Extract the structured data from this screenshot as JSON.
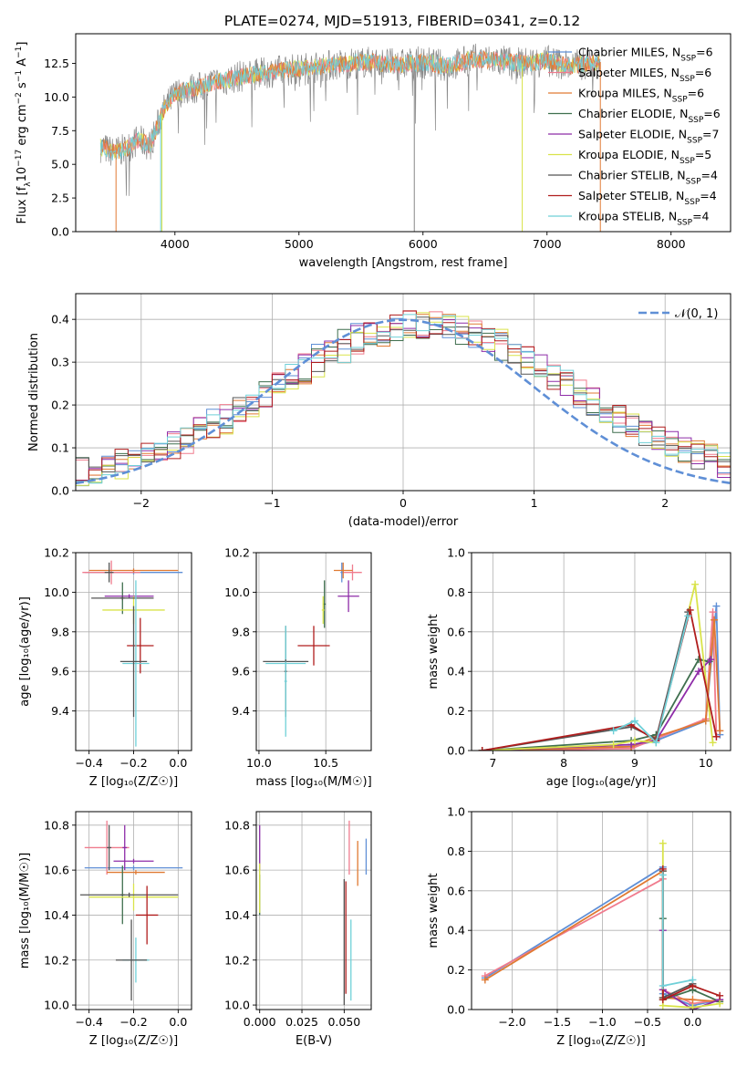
{
  "figure_title": "PLATE=0274, MJD=51913, FIBERID=0341, z=0.12",
  "colors": {
    "Chabrier MILES": "#5f8fd6",
    "Salpeter MILES": "#f07c8e",
    "Kroupa MILES": "#e07a33",
    "Chabrier ELODIE": "#3f6f4e",
    "Salpeter ELODIE": "#8e2ca8",
    "Kroupa ELODIE": "#d9e34a",
    "Chabrier STELIB": "#555555",
    "Salpeter STELIB": "#b01d1d",
    "Kroupa STELIB": "#6fd0d8",
    "normal_curve": "#5f8fd6",
    "spectrum_grey": "#888888"
  },
  "chart_data": [
    {
      "id": "spectrum",
      "type": "line",
      "title": "PLATE=0274, MJD=51913, FIBERID=0341, z=0.12",
      "xlabel": "wavelength [Angstrom, rest frame]",
      "ylabel_html": [
        "Flux [f",
        "λ",
        "10",
        "−17",
        " erg cm",
        "−2",
        " s",
        "−1",
        " A",
        "−1",
        "]"
      ],
      "xlim": [
        3200,
        8480
      ],
      "ylim": [
        0,
        14.7
      ],
      "xticks": [
        4000,
        5000,
        6000,
        7000,
        8000
      ],
      "yticks": [
        0.0,
        2.5,
        5.0,
        7.5,
        10.0,
        12.5
      ],
      "ytick_labels": [
        "0.0",
        "2.5",
        "5.0",
        "7.5",
        "10.0",
        "12.5"
      ],
      "continuum_x": [
        3400,
        3500,
        3600,
        3700,
        3800,
        3900,
        4000,
        4100,
        4200,
        4300,
        4400,
        4500,
        4600,
        4800,
        5000,
        5200,
        5400,
        5600,
        5800,
        6000,
        6200,
        6400,
        6600,
        6800,
        7000,
        7200,
        7400
      ],
      "continuum_y": [
        6.3,
        5.9,
        6.1,
        6.8,
        6.4,
        8.9,
        10.2,
        10.6,
        10.7,
        11.1,
        11.2,
        11.5,
        11.6,
        11.9,
        12.1,
        12.3,
        12.5,
        12.6,
        12.4,
        12.6,
        12.3,
        12.8,
        12.7,
        12.5,
        12.7,
        12.3,
        12.6
      ],
      "legend_location": "right",
      "legend": [
        {
          "label": "Chabrier MILES, N",
          "sub": "SSP",
          "suffix": "=6"
        },
        {
          "label": "Salpeter MILES, N",
          "sub": "SSP",
          "suffix": "=6"
        },
        {
          "label": "Kroupa MILES, N",
          "sub": "SSP",
          "suffix": "=6"
        },
        {
          "label": "Chabrier ELODIE, N",
          "sub": "SSP",
          "suffix": "=6"
        },
        {
          "label": "Salpeter ELODIE, N",
          "sub": "SSP",
          "suffix": "=7"
        },
        {
          "label": "Kroupa ELODIE, N",
          "sub": "SSP",
          "suffix": "=5"
        },
        {
          "label": "Chabrier STELIB, N",
          "sub": "SSP",
          "suffix": "=4"
        },
        {
          "label": "Salpeter STELIB, N",
          "sub": "SSP",
          "suffix": "=4"
        },
        {
          "label": "Kroupa STELIB, N",
          "sub": "SSP",
          "suffix": "=4"
        }
      ]
    },
    {
      "id": "residuals",
      "type": "histogram",
      "xlabel": "(data-model)/error",
      "ylabel": "Normed distribution",
      "xlim": [
        -2.5,
        2.5
      ],
      "ylim": [
        0,
        0.46
      ],
      "xticks": [
        -2,
        -1,
        0,
        1,
        2
      ],
      "xtick_labels": [
        "−2",
        "−1",
        "0",
        "1",
        "2"
      ],
      "yticks": [
        0.0,
        0.1,
        0.2,
        0.3,
        0.4
      ],
      "ytick_labels": [
        "0.0",
        "0.1",
        "0.2",
        "0.3",
        "0.4"
      ],
      "grid": true,
      "bin_width": 0.1,
      "bin_start": -2.5,
      "normal_label": "𝒩(0, 1)",
      "legend_location": "top-right"
    },
    {
      "id": "age_vs_Z",
      "type": "errorbar",
      "xlabel": "Z [log₁₀(Z/Z☉)]",
      "ylabel": "age  [log₁₀(age/yr)]",
      "xlim": [
        -0.46,
        0.06
      ],
      "ylim": [
        9.2,
        10.2
      ],
      "xticks": [
        -0.4,
        -0.2,
        0.0
      ],
      "xtick_labels": [
        "−0.4",
        "−0.2",
        "0.0"
      ],
      "yticks": [
        9.4,
        9.6,
        9.8,
        10.0,
        10.2
      ],
      "ytick_labels": [
        "9.4",
        "9.6",
        "9.8",
        "10.0",
        "10.2"
      ],
      "grid": true,
      "points": [
        {
          "series": "Chabrier MILES",
          "x": -0.2,
          "xerr": 0.22,
          "y": 10.1,
          "yerr": 0.01
        },
        {
          "series": "Salpeter MILES",
          "x": -0.3,
          "xerr": 0.13,
          "y": 10.1,
          "yerr": 0.06
        },
        {
          "series": "Kroupa MILES",
          "x": -0.2,
          "xerr": 0.2,
          "y": 10.11,
          "yerr": 0.01
        },
        {
          "series": "Chabrier ELODIE",
          "x": -0.25,
          "xerr": 0.01,
          "y": 9.97,
          "yerr": 0.08
        },
        {
          "series": "Salpeter ELODIE",
          "x": -0.22,
          "xerr": 0.11,
          "y": 9.98,
          "yerr": 0.01
        },
        {
          "series": "Kroupa ELODIE",
          "x": -0.2,
          "xerr": 0.14,
          "y": 9.91,
          "yerr": 0.07
        },
        {
          "series": "Chabrier STELIB",
          "x": -0.25,
          "xerr": 0.14,
          "y": 9.97,
          "yerr": 0.01
        },
        {
          "series": "Salpeter STELIB",
          "x": -0.17,
          "xerr": 0.06,
          "y": 9.73,
          "yerr": 0.14
        },
        {
          "series": "Kroupa STELIB",
          "x": -0.19,
          "xerr": 0.06,
          "y": 9.64,
          "yerr": 0.42
        },
        {
          "series": "Chabrier STELIB",
          "x": -0.2,
          "xerr": 0.06,
          "y": 9.65,
          "yerr": 0.28
        },
        {
          "series": "Chabrier STELIB",
          "x": -0.31,
          "xerr": 0.02,
          "y": 10.1,
          "yerr": 0.05
        }
      ]
    },
    {
      "id": "age_vs_mass",
      "type": "errorbar",
      "xlabel": "mass [log₁₀(M/M☉)]",
      "ylabel": "",
      "xlim": [
        9.98,
        10.84
      ],
      "ylim": [
        9.2,
        10.2
      ],
      "xticks": [
        10.0,
        10.5
      ],
      "xtick_labels": [
        "10.0",
        "10.5"
      ],
      "yticks": [
        9.4,
        9.6,
        9.8,
        10.0,
        10.2
      ],
      "ytick_labels": [
        "9.4",
        "9.6",
        "9.8",
        "10.0",
        "10.2"
      ],
      "grid": true,
      "points": [
        {
          "series": "Chabrier MILES",
          "x": 10.62,
          "xerr": 0.01,
          "y": 10.1,
          "yerr": 0.05
        },
        {
          "series": "Salpeter MILES",
          "x": 10.7,
          "xerr": 0.07,
          "y": 10.1,
          "yerr": 0.04
        },
        {
          "series": "Kroupa MILES",
          "x": 10.63,
          "xerr": 0.07,
          "y": 10.11,
          "yerr": 0.04
        },
        {
          "series": "Chabrier ELODIE",
          "x": 10.49,
          "xerr": 0.01,
          "y": 9.94,
          "yerr": 0.12
        },
        {
          "series": "Salpeter ELODIE",
          "x": 10.67,
          "xerr": 0.08,
          "y": 9.98,
          "yerr": 0.08
        },
        {
          "series": "Kroupa ELODIE",
          "x": 10.48,
          "xerr": 0.01,
          "y": 9.91,
          "yerr": 0.07
        },
        {
          "series": "Chabrier STELIB",
          "x": 10.2,
          "xerr": 0.01,
          "y": 9.6,
          "yerr": 0.23
        },
        {
          "series": "Salpeter STELIB",
          "x": 10.41,
          "xerr": 0.12,
          "y": 9.73,
          "yerr": 0.1
        },
        {
          "series": "Kroupa STELIB",
          "x": 10.2,
          "xerr": 0.01,
          "y": 9.55,
          "yerr": 0.28
        },
        {
          "series": "Chabrier STELIB",
          "x": 10.2,
          "xerr": 0.17,
          "y": 9.65,
          "yerr": 0.01
        },
        {
          "series": "Kroupa STELIB",
          "x": 10.2,
          "xerr": 0.15,
          "y": 9.64,
          "yerr": 0.01
        }
      ]
    },
    {
      "id": "massweight_vs_age",
      "type": "line",
      "xlabel": "age  [log₁₀(age/yr)]",
      "ylabel": "mass weight",
      "xlim": [
        6.7,
        10.35
      ],
      "ylim": [
        0,
        1.0
      ],
      "xticks": [
        7,
        8,
        9,
        10
      ],
      "xtick_labels": [
        "7",
        "8",
        "9",
        "10"
      ],
      "yticks": [
        0.0,
        0.2,
        0.4,
        0.6,
        0.8,
        1.0
      ],
      "ytick_labels": [
        "0.0",
        "0.2",
        "0.4",
        "0.6",
        "0.8",
        "1.0"
      ],
      "grid": true,
      "series": [
        {
          "name": "Chabrier MILES",
          "x": [
            6.85,
            8.95,
            9.3,
            10.0,
            10.15,
            10.2
          ],
          "y": [
            0.0,
            0.02,
            0.05,
            0.15,
            0.73,
            0.08
          ]
        },
        {
          "name": "Salpeter MILES",
          "x": [
            6.85,
            8.95,
            9.3,
            10.0,
            10.1,
            10.15
          ],
          "y": [
            0.0,
            0.01,
            0.06,
            0.16,
            0.7,
            0.07
          ]
        },
        {
          "name": "Kroupa MILES",
          "x": [
            6.85,
            8.95,
            9.3,
            10.0,
            10.12,
            10.2
          ],
          "y": [
            0.0,
            0.02,
            0.07,
            0.15,
            0.66,
            0.1
          ]
        },
        {
          "name": "Chabrier ELODIE",
          "x": [
            6.85,
            8.95,
            9.3,
            9.9,
            10.05
          ],
          "y": [
            0.0,
            0.05,
            0.08,
            0.46,
            0.45
          ]
        },
        {
          "name": "Salpeter ELODIE",
          "x": [
            6.85,
            8.95,
            9.3,
            9.9,
            10.07
          ],
          "y": [
            0.0,
            0.03,
            0.05,
            0.4,
            0.46
          ]
        },
        {
          "name": "Kroupa ELODIE",
          "x": [
            6.85,
            8.7,
            9.0,
            9.3,
            9.85,
            10.1
          ],
          "y": [
            0.0,
            0.03,
            0.05,
            0.04,
            0.84,
            0.04
          ]
        },
        {
          "name": "Chabrier STELIB",
          "x": [
            6.85,
            8.95,
            9.3,
            9.75
          ],
          "y": [
            0.0,
            0.12,
            0.06,
            0.7
          ]
        },
        {
          "name": "Salpeter STELIB",
          "x": [
            6.85,
            8.95,
            9.3,
            9.78,
            10.15
          ],
          "y": [
            0.0,
            0.13,
            0.05,
            0.71,
            0.07
          ]
        },
        {
          "name": "Kroupa STELIB",
          "x": [
            8.7,
            9.0,
            9.3,
            9.75
          ],
          "y": [
            0.1,
            0.15,
            0.04,
            0.68
          ]
        }
      ]
    },
    {
      "id": "mass_vs_Z",
      "type": "errorbar",
      "xlabel": "Z [log₁₀(Z/Z☉)]",
      "ylabel": "mass [log₁₀(M/M☉)]",
      "xlim": [
        -0.46,
        0.06
      ],
      "ylim": [
        9.98,
        10.86
      ],
      "xticks": [
        -0.4,
        -0.2,
        0.0
      ],
      "xtick_labels": [
        "−0.4",
        "−0.2",
        "0.0"
      ],
      "yticks": [
        10.0,
        10.2,
        10.4,
        10.6,
        10.8
      ],
      "ytick_labels": [
        "10.0",
        "10.2",
        "10.4",
        "10.6",
        "10.8"
      ],
      "grid": true,
      "points": [
        {
          "series": "Chabrier MILES",
          "x": -0.2,
          "xerr": 0.22,
          "y": 10.61,
          "yerr": 0.01
        },
        {
          "series": "Salpeter MILES",
          "x": -0.32,
          "xerr": 0.1,
          "y": 10.7,
          "yerr": 0.12
        },
        {
          "series": "Kroupa MILES",
          "x": -0.19,
          "xerr": 0.13,
          "y": 10.59,
          "yerr": 0.01
        },
        {
          "series": "Chabrier ELODIE",
          "x": -0.25,
          "xerr": 0.01,
          "y": 10.49,
          "yerr": 0.13
        },
        {
          "series": "Salpeter ELODIE",
          "x": -0.2,
          "xerr": 0.09,
          "y": 10.64,
          "yerr": 0.01
        },
        {
          "series": "Kroupa ELODIE",
          "x": -0.2,
          "xerr": 0.2,
          "y": 10.48,
          "yerr": 0.06
        },
        {
          "series": "Chabrier STELIB",
          "x": -0.22,
          "xerr": 0.22,
          "y": 10.49,
          "yerr": 0.01
        },
        {
          "series": "Salpeter STELIB",
          "x": -0.14,
          "xerr": 0.05,
          "y": 10.4,
          "yerr": 0.13
        },
        {
          "series": "Kroupa STELIB",
          "x": -0.19,
          "xerr": 0.06,
          "y": 10.2,
          "yerr": 0.1
        },
        {
          "series": "Chabrier STELIB",
          "x": -0.21,
          "xerr": 0.07,
          "y": 10.2,
          "yerr": 0.18
        },
        {
          "series": "Salpeter ELODIE",
          "x": -0.24,
          "xerr": 0.01,
          "y": 10.7,
          "yerr": 0.1
        },
        {
          "series": "Chabrier STELIB",
          "x": -0.31,
          "xerr": 0.01,
          "y": 10.7,
          "yerr": 0.1
        }
      ]
    },
    {
      "id": "mass_vs_EBV",
      "type": "errorbar",
      "xlabel": "E(B-V)",
      "ylabel": "",
      "xlim": [
        -0.002,
        0.066
      ],
      "ylim": [
        9.98,
        10.86
      ],
      "xticks": [
        0.0,
        0.025,
        0.05
      ],
      "xtick_labels": [
        "0.000",
        "0.025",
        "0.050"
      ],
      "yticks": [
        10.0,
        10.2,
        10.4,
        10.6,
        10.8
      ],
      "ytick_labels": [
        "10.0",
        "10.2",
        "10.4",
        "10.6",
        "10.8"
      ],
      "grid": true,
      "points": [
        {
          "series": "Chabrier MILES",
          "x": 0.063,
          "xerr": 0.0,
          "y": 10.66,
          "yerr": 0.08
        },
        {
          "series": "Salpeter MILES",
          "x": 0.053,
          "xerr": 0.0,
          "y": 10.7,
          "yerr": 0.12
        },
        {
          "series": "Kroupa MILES",
          "x": 0.058,
          "xerr": 0.0,
          "y": 10.63,
          "yerr": 0.1
        },
        {
          "series": "Chabrier ELODIE",
          "x": 0.0,
          "xerr": 0.0,
          "y": 10.49,
          "yerr": 0.09
        },
        {
          "series": "Salpeter ELODIE",
          "x": 0.0,
          "xerr": 0.0,
          "y": 10.7,
          "yerr": 0.1
        },
        {
          "series": "Kroupa ELODIE",
          "x": 0.0,
          "xerr": 0.0,
          "y": 10.52,
          "yerr": 0.11
        },
        {
          "series": "Chabrier STELIB",
          "x": 0.05,
          "xerr": 0.0,
          "y": 10.28,
          "yerr": 0.28
        },
        {
          "series": "Salpeter STELIB",
          "x": 0.051,
          "xerr": 0.0,
          "y": 10.3,
          "yerr": 0.25
        },
        {
          "series": "Kroupa STELIB",
          "x": 0.054,
          "xerr": 0.0,
          "y": 10.2,
          "yerr": 0.18
        }
      ]
    },
    {
      "id": "massweight_vs_Z",
      "type": "line",
      "xlabel": "Z [log₁₀(Z/Z☉)]",
      "ylabel": "mass weight",
      "xlim": [
        -2.45,
        0.42
      ],
      "ylim": [
        0,
        1.0
      ],
      "xticks": [
        -2.0,
        -1.5,
        -1.0,
        -0.5,
        0.0
      ],
      "xtick_labels": [
        "−2.0",
        "−1.5",
        "−1.0",
        "−0.5",
        "0.0"
      ],
      "yticks": [
        0.0,
        0.2,
        0.4,
        0.6,
        0.8,
        1.0
      ],
      "ytick_labels": [
        "0.0",
        "0.2",
        "0.4",
        "0.6",
        "0.8",
        "1.0"
      ],
      "grid": true,
      "series": [
        {
          "name": "Chabrier MILES",
          "x": [
            -2.3,
            -0.33,
            -0.33,
            0.0,
            0.3
          ],
          "y": [
            0.16,
            0.72,
            0.08,
            0.02,
            0.05
          ]
        },
        {
          "name": "Salpeter MILES",
          "x": [
            -2.3,
            -0.33,
            -0.33,
            0.0,
            0.3
          ],
          "y": [
            0.17,
            0.66,
            0.1,
            0.03,
            0.05
          ]
        },
        {
          "name": "Kroupa MILES",
          "x": [
            -2.3,
            -0.33,
            -0.33,
            0.0,
            0.3
          ],
          "y": [
            0.15,
            0.7,
            0.06,
            0.05,
            0.04
          ]
        },
        {
          "name": "Chabrier ELODIE",
          "x": [
            -0.33,
            -0.33,
            0.0,
            0.3
          ],
          "y": [
            0.46,
            0.05,
            0.1,
            0.04
          ]
        },
        {
          "name": "Salpeter ELODIE",
          "x": [
            -0.33,
            -0.33,
            0.0,
            0.3
          ],
          "y": [
            0.4,
            0.1,
            0.0,
            0.05
          ]
        },
        {
          "name": "Kroupa ELODIE",
          "x": [
            -0.33,
            -0.33,
            0.0,
            0.3
          ],
          "y": [
            0.84,
            0.02,
            0.01,
            0.03
          ]
        },
        {
          "name": "Chabrier STELIB",
          "x": [
            -0.33,
            -0.33,
            0.0
          ],
          "y": [
            0.7,
            0.06,
            0.13
          ]
        },
        {
          "name": "Salpeter STELIB",
          "x": [
            -0.33,
            -0.33,
            0.0,
            0.3
          ],
          "y": [
            0.71,
            0.05,
            0.12,
            0.07
          ]
        },
        {
          "name": "Kroupa STELIB",
          "x": [
            -0.33,
            -0.33,
            0.0
          ],
          "y": [
            0.68,
            0.12,
            0.15
          ]
        }
      ]
    }
  ]
}
